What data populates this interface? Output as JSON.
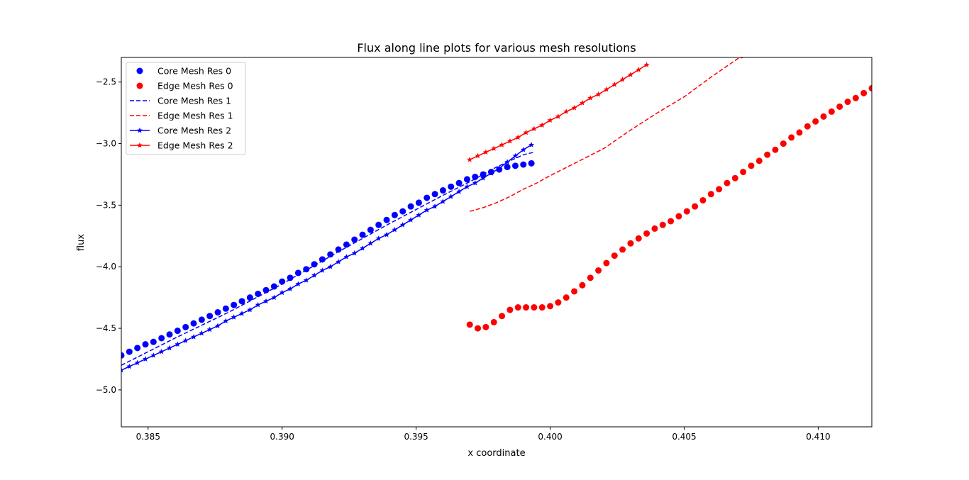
{
  "chart_data": {
    "type": "line",
    "title": "Flux along line plots for various mesh resolutions",
    "xlabel": "x coordinate",
    "ylabel": "flux",
    "xlim": [
      0.384,
      0.412
    ],
    "ylim": [
      -5.3,
      -2.3
    ],
    "xticks": [
      0.385,
      0.39,
      0.395,
      0.4,
      0.405,
      0.41
    ],
    "xtick_labels": [
      "0.385",
      "0.390",
      "0.395",
      "0.400",
      "0.405",
      "0.410"
    ],
    "yticks": [
      -5.0,
      -4.5,
      -4.0,
      -3.5,
      -3.0,
      -2.5
    ],
    "ytick_labels": [
      "−5.0",
      "−4.5",
      "−4.0",
      "−3.5",
      "−3.0",
      "−2.5"
    ],
    "grid": false,
    "legend_position": "top-left",
    "series": [
      {
        "name": "Core Mesh Res 0",
        "color": "#0000ff",
        "style": "markers-circle",
        "x": [
          0.384,
          0.3843,
          0.3846,
          0.3849,
          0.3852,
          0.3855,
          0.3858,
          0.3861,
          0.3864,
          0.3867,
          0.387,
          0.3873,
          0.3876,
          0.3879,
          0.3882,
          0.3885,
          0.3888,
          0.3891,
          0.3894,
          0.3897,
          0.39,
          0.3903,
          0.3906,
          0.3909,
          0.3912,
          0.3915,
          0.3918,
          0.3921,
          0.3924,
          0.3927,
          0.393,
          0.3933,
          0.3936,
          0.3939,
          0.3942,
          0.3945,
          0.3948,
          0.3951,
          0.3954,
          0.3957,
          0.396,
          0.3963,
          0.3966,
          0.3969,
          0.3972,
          0.3975,
          0.3978,
          0.3981,
          0.3984,
          0.3987,
          0.399,
          0.3993
        ],
        "y": [
          -4.72,
          -4.69,
          -4.66,
          -4.63,
          -4.61,
          -4.58,
          -4.55,
          -4.52,
          -4.49,
          -4.46,
          -4.43,
          -4.4,
          -4.37,
          -4.34,
          -4.31,
          -4.28,
          -4.25,
          -4.22,
          -4.19,
          -4.16,
          -4.12,
          -4.09,
          -4.05,
          -4.02,
          -3.98,
          -3.94,
          -3.9,
          -3.86,
          -3.82,
          -3.78,
          -3.74,
          -3.7,
          -3.66,
          -3.62,
          -3.58,
          -3.55,
          -3.51,
          -3.48,
          -3.44,
          -3.41,
          -3.38,
          -3.35,
          -3.32,
          -3.29,
          -3.27,
          -3.25,
          -3.23,
          -3.21,
          -3.19,
          -3.18,
          -3.17,
          -3.16
        ]
      },
      {
        "name": "Edge Mesh Res 0",
        "color": "#ff0000",
        "style": "markers-circle",
        "x": [
          0.397,
          0.3973,
          0.3976,
          0.3979,
          0.3982,
          0.3985,
          0.3988,
          0.3991,
          0.3994,
          0.3997,
          0.4,
          0.4003,
          0.4006,
          0.4009,
          0.4012,
          0.4015,
          0.4018,
          0.4021,
          0.4024,
          0.4027,
          0.403,
          0.4033,
          0.4036,
          0.4039,
          0.4042,
          0.4045,
          0.4048,
          0.4051,
          0.4054,
          0.4057,
          0.406,
          0.4063,
          0.4066,
          0.4069,
          0.4072,
          0.4075,
          0.4078,
          0.4081,
          0.4084,
          0.4087,
          0.409,
          0.4093,
          0.4096,
          0.4099,
          0.4102,
          0.4105,
          0.4108,
          0.4111,
          0.4114,
          0.4117,
          0.412
        ],
        "y": [
          -4.47,
          -4.5,
          -4.49,
          -4.45,
          -4.4,
          -4.35,
          -4.33,
          -4.33,
          -4.33,
          -4.33,
          -4.32,
          -4.29,
          -4.25,
          -4.2,
          -4.15,
          -4.09,
          -4.03,
          -3.97,
          -3.91,
          -3.86,
          -3.81,
          -3.77,
          -3.73,
          -3.69,
          -3.66,
          -3.63,
          -3.59,
          -3.55,
          -3.51,
          -3.46,
          -3.41,
          -3.37,
          -3.32,
          -3.28,
          -3.23,
          -3.18,
          -3.14,
          -3.09,
          -3.05,
          -3.0,
          -2.95,
          -2.91,
          -2.86,
          -2.82,
          -2.78,
          -2.74,
          -2.7,
          -2.66,
          -2.63,
          -2.59,
          -2.55
        ]
      },
      {
        "name": "Core Mesh Res 1",
        "color": "#0000ff",
        "style": "dashed",
        "x": [
          0.384,
          0.386,
          0.388,
          0.39,
          0.392,
          0.394,
          0.396,
          0.397,
          0.398,
          0.3985,
          0.399,
          0.3994
        ],
        "y": [
          -4.8,
          -4.58,
          -4.37,
          -4.14,
          -3.89,
          -3.65,
          -3.42,
          -3.31,
          -3.19,
          -3.14,
          -3.09,
          -3.07
        ]
      },
      {
        "name": "Edge Mesh Res 1",
        "color": "#ff0000",
        "style": "dashed",
        "x": [
          0.397,
          0.3975,
          0.398,
          0.3985,
          0.399,
          0.3995,
          0.4,
          0.401,
          0.402,
          0.403,
          0.404,
          0.405,
          0.406,
          0.407,
          0.4072
        ],
        "y": [
          -3.55,
          -3.52,
          -3.48,
          -3.43,
          -3.37,
          -3.32,
          -3.26,
          -3.15,
          -3.04,
          -2.89,
          -2.75,
          -2.62,
          -2.46,
          -2.31,
          -2.3
        ]
      },
      {
        "name": "Core Mesh Res 2",
        "color": "#0000ff",
        "style": "line-star",
        "x": [
          0.384,
          0.3843,
          0.3846,
          0.3849,
          0.3852,
          0.3855,
          0.3858,
          0.3861,
          0.3864,
          0.3867,
          0.387,
          0.3873,
          0.3876,
          0.3879,
          0.3882,
          0.3885,
          0.3888,
          0.3891,
          0.3894,
          0.3897,
          0.39,
          0.3903,
          0.3906,
          0.3909,
          0.3912,
          0.3915,
          0.3918,
          0.3921,
          0.3924,
          0.3927,
          0.393,
          0.3933,
          0.3936,
          0.3939,
          0.3942,
          0.3945,
          0.3948,
          0.3951,
          0.3954,
          0.3957,
          0.396,
          0.3963,
          0.3966,
          0.3969,
          0.3972,
          0.3975,
          0.3978,
          0.3981,
          0.3984,
          0.3987,
          0.399,
          0.3993
        ],
        "y": [
          -4.84,
          -4.81,
          -4.78,
          -4.75,
          -4.72,
          -4.69,
          -4.66,
          -4.63,
          -4.6,
          -4.57,
          -4.54,
          -4.51,
          -4.48,
          -4.44,
          -4.41,
          -4.38,
          -4.35,
          -4.31,
          -4.28,
          -4.25,
          -4.21,
          -4.18,
          -4.14,
          -4.11,
          -4.07,
          -4.03,
          -4.0,
          -3.96,
          -3.92,
          -3.89,
          -3.85,
          -3.81,
          -3.77,
          -3.74,
          -3.7,
          -3.66,
          -3.62,
          -3.58,
          -3.54,
          -3.51,
          -3.47,
          -3.43,
          -3.39,
          -3.35,
          -3.32,
          -3.28,
          -3.24,
          -3.2,
          -3.15,
          -3.1,
          -3.05,
          -3.01
        ]
      },
      {
        "name": "Edge Mesh Res 2",
        "color": "#ff0000",
        "style": "line-star",
        "x": [
          0.397,
          0.3973,
          0.3976,
          0.3979,
          0.3982,
          0.3985,
          0.3988,
          0.3991,
          0.3994,
          0.3997,
          0.4,
          0.4003,
          0.4006,
          0.4009,
          0.4012,
          0.4015,
          0.4018,
          0.4021,
          0.4024,
          0.4027,
          0.403,
          0.4033,
          0.4036
        ],
        "y": [
          -3.13,
          -3.1,
          -3.07,
          -3.04,
          -3.01,
          -2.98,
          -2.95,
          -2.91,
          -2.88,
          -2.85,
          -2.81,
          -2.78,
          -2.74,
          -2.71,
          -2.67,
          -2.63,
          -2.6,
          -2.56,
          -2.52,
          -2.48,
          -2.44,
          -2.4,
          -2.36
        ]
      }
    ]
  }
}
